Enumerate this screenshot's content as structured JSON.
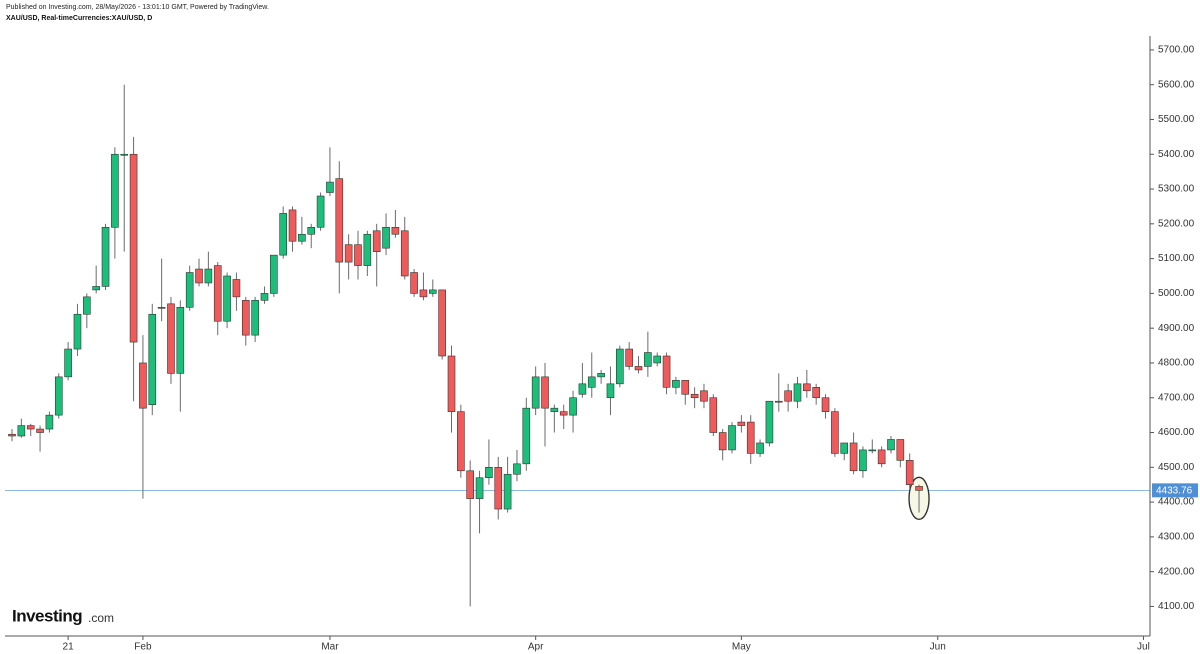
{
  "chart_data": {
    "type": "candlestick",
    "publisher_note": "Published on Investing.com, 28/May/2026 - 13:01:10 GMT, Powered by TradingView.",
    "title": "XAU/USD, Real-timeCurrencies:XAU/USD, D",
    "brand": "Investing",
    "brand_suffix": ".com",
    "up_color": "#1bbf7a",
    "down_color": "#ef5a5a",
    "last_price": 4433.76,
    "last_price_color": "#4f8fd8",
    "open": [
      4595,
      4590,
      4620,
      4610,
      4610,
      4650,
      4760,
      4840,
      4940,
      5010,
      5020,
      5190,
      5400,
      5400,
      4800,
      4680,
      4960,
      4970,
      4770,
      4960,
      5070,
      5030,
      5080,
      4920,
      5040,
      4980,
      4880,
      4980,
      5000,
      5110,
      5240,
      5150,
      5170,
      5190,
      5290,
      5330,
      5140,
      5140,
      5080,
      5180,
      5130,
      5190,
      5180,
      5060,
      5010,
      5000,
      5010,
      4820,
      4660,
      4490,
      4410,
      4470,
      4500,
      4380,
      4480,
      4510,
      4670,
      4760,
      4660,
      4660,
      4650,
      4710,
      4730,
      4760,
      4700,
      4740,
      4840,
      4790,
      4790,
      4800,
      4820,
      4730,
      4750,
      4710,
      4720,
      4700,
      4600,
      4550,
      4630,
      4630,
      4540,
      4570,
      4690,
      4720,
      4690,
      4740,
      4730,
      4700,
      4660,
      4540,
      4570,
      4490,
      4550,
      4550,
      4550,
      4580,
      4520,
      4445
    ],
    "high": [
      4610,
      4640,
      4625,
      4620,
      4660,
      4770,
      4860,
      4970,
      5000,
      5080,
      5200,
      5420,
      5600,
      5450,
      4880,
      4970,
      5100,
      4990,
      4980,
      5080,
      5100,
      5120,
      5090,
      5060,
      5060,
      4990,
      4990,
      5020,
      5110,
      5250,
      5250,
      5220,
      5200,
      5290,
      5420,
      5380,
      5170,
      5180,
      5180,
      5200,
      5230,
      5240,
      5220,
      5070,
      5060,
      5040,
      5010,
      4850,
      4680,
      4520,
      4490,
      4580,
      4530,
      4530,
      4550,
      4700,
      4790,
      4800,
      4680,
      4680,
      4720,
      4800,
      4830,
      4780,
      4790,
      4850,
      4860,
      4820,
      4890,
      4830,
      4830,
      4760,
      4750,
      4730,
      4740,
      4710,
      4610,
      4630,
      4650,
      4650,
      4580,
      4690,
      4770,
      4740,
      4760,
      4780,
      4740,
      4710,
      4670,
      4570,
      4600,
      4560,
      4580,
      4560,
      4590,
      4580,
      4540,
      4450
    ],
    "low": [
      4575,
      4585,
      4590,
      4545,
      4600,
      4640,
      4750,
      4820,
      4900,
      5000,
      5010,
      5100,
      5120,
      4690,
      4410,
      4650,
      4920,
      4740,
      4660,
      4950,
      5020,
      5020,
      4880,
      4900,
      4950,
      4850,
      4860,
      4970,
      4990,
      5100,
      5120,
      5140,
      5130,
      5180,
      5280,
      5000,
      5040,
      5040,
      5050,
      5020,
      5110,
      5160,
      5040,
      4990,
      4980,
      4990,
      4810,
      4600,
      4470,
      4100,
      4310,
      4450,
      4350,
      4370,
      4460,
      4490,
      4650,
      4560,
      4600,
      4610,
      4600,
      4700,
      4700,
      4740,
      4650,
      4730,
      4780,
      4770,
      4760,
      4790,
      4710,
      4710,
      4680,
      4670,
      4670,
      4590,
      4520,
      4540,
      4600,
      4510,
      4530,
      4560,
      4660,
      4660,
      4670,
      4700,
      4680,
      4640,
      4530,
      4520,
      4480,
      4470,
      4540,
      4500,
      4540,
      4500,
      4440,
      4370
    ],
    "close": [
      4590,
      4620,
      4610,
      4600,
      4650,
      4760,
      4840,
      4940,
      4990,
      5020,
      5190,
      5400,
      5400,
      4860,
      4670,
      4940,
      4960,
      4770,
      4960,
      5060,
      5030,
      5070,
      4920,
      5050,
      4990,
      4880,
      4980,
      5000,
      5110,
      5230,
      5150,
      5170,
      5190,
      5280,
      5320,
      5090,
      5090,
      5080,
      5170,
      5120,
      5190,
      5170,
      5050,
      5000,
      4990,
      5010,
      4820,
      4660,
      4490,
      4410,
      4470,
      4500,
      4380,
      4480,
      4510,
      4670,
      4760,
      4670,
      4670,
      4650,
      4700,
      4740,
      4760,
      4770,
      4740,
      4840,
      4790,
      4780,
      4830,
      4820,
      4730,
      4750,
      4710,
      4700,
      4690,
      4600,
      4550,
      4620,
      4620,
      4540,
      4570,
      4690,
      4690,
      4690,
      4740,
      4720,
      4700,
      4660,
      4540,
      4570,
      4490,
      4550,
      4550,
      4510,
      4580,
      4520,
      4450,
      4433.76
    ],
    "xlim": [
      -0.75,
      121.7
    ],
    "xticks": [
      {
        "value": 6,
        "label": "21"
      },
      {
        "value": 14,
        "label": "Feb"
      },
      {
        "value": 34,
        "label": "Mar"
      },
      {
        "value": 56,
        "label": "Apr"
      },
      {
        "value": 78,
        "label": "May"
      },
      {
        "value": 99,
        "label": "Jun"
      },
      {
        "value": 121,
        "label": "Jul"
      }
    ],
    "ylim": [
      4015,
      5740
    ],
    "yticks": [
      {
        "value": 4100,
        "label": "4100.00"
      },
      {
        "value": 4200,
        "label": "4200.00"
      },
      {
        "value": 4300,
        "label": "4300.00"
      },
      {
        "value": 4400,
        "label": "4400.00"
      },
      {
        "value": 4500,
        "label": "4500.00"
      },
      {
        "value": 4600,
        "label": "4600.00"
      },
      {
        "value": 4700,
        "label": "4700.00"
      },
      {
        "value": 4800,
        "label": "4800.00"
      },
      {
        "value": 4900,
        "label": "4900.00"
      },
      {
        "value": 5000,
        "label": "5000.00"
      },
      {
        "value": 5100,
        "label": "5100.00"
      },
      {
        "value": 5200,
        "label": "5200.00"
      },
      {
        "value": 5300,
        "label": "5300.00"
      },
      {
        "value": 5400,
        "label": "5400.00"
      },
      {
        "value": 5500,
        "label": "5500.00"
      },
      {
        "value": 5600,
        "label": "5600.00"
      },
      {
        "value": 5700,
        "label": "5700.00"
      }
    ]
  }
}
